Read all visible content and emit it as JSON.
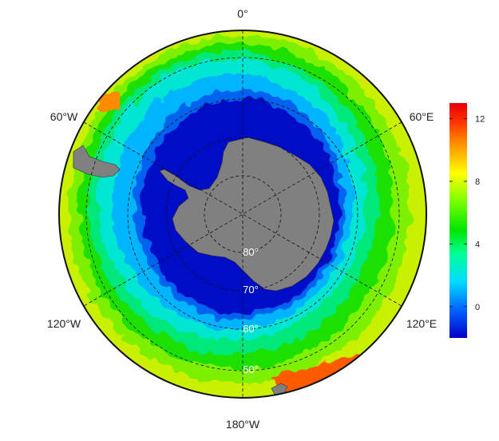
{
  "map": {
    "projection": "south-polar-stereographic",
    "longitude_labels": {
      "top": "0°",
      "upper_left": "60°W",
      "upper_right": "60°E",
      "lower_left": "120°W",
      "lower_right": "120°E",
      "bottom": "180°W"
    },
    "latitude_labels": [
      "80°",
      "70°",
      "60°",
      "50°"
    ],
    "land_color": "#808080",
    "grid_style": "dashed"
  },
  "colorbar": {
    "ticks": [
      "12",
      "8",
      "4",
      "0"
    ],
    "tick_values": [
      12,
      8,
      4,
      0
    ],
    "range": [
      -2,
      13
    ],
    "colors": [
      "#0000c8",
      "#0064ff",
      "#00dcff",
      "#00ff96",
      "#00e600",
      "#78ff00",
      "#ffff00",
      "#ff9600",
      "#ff3200",
      "#e60000"
    ]
  }
}
